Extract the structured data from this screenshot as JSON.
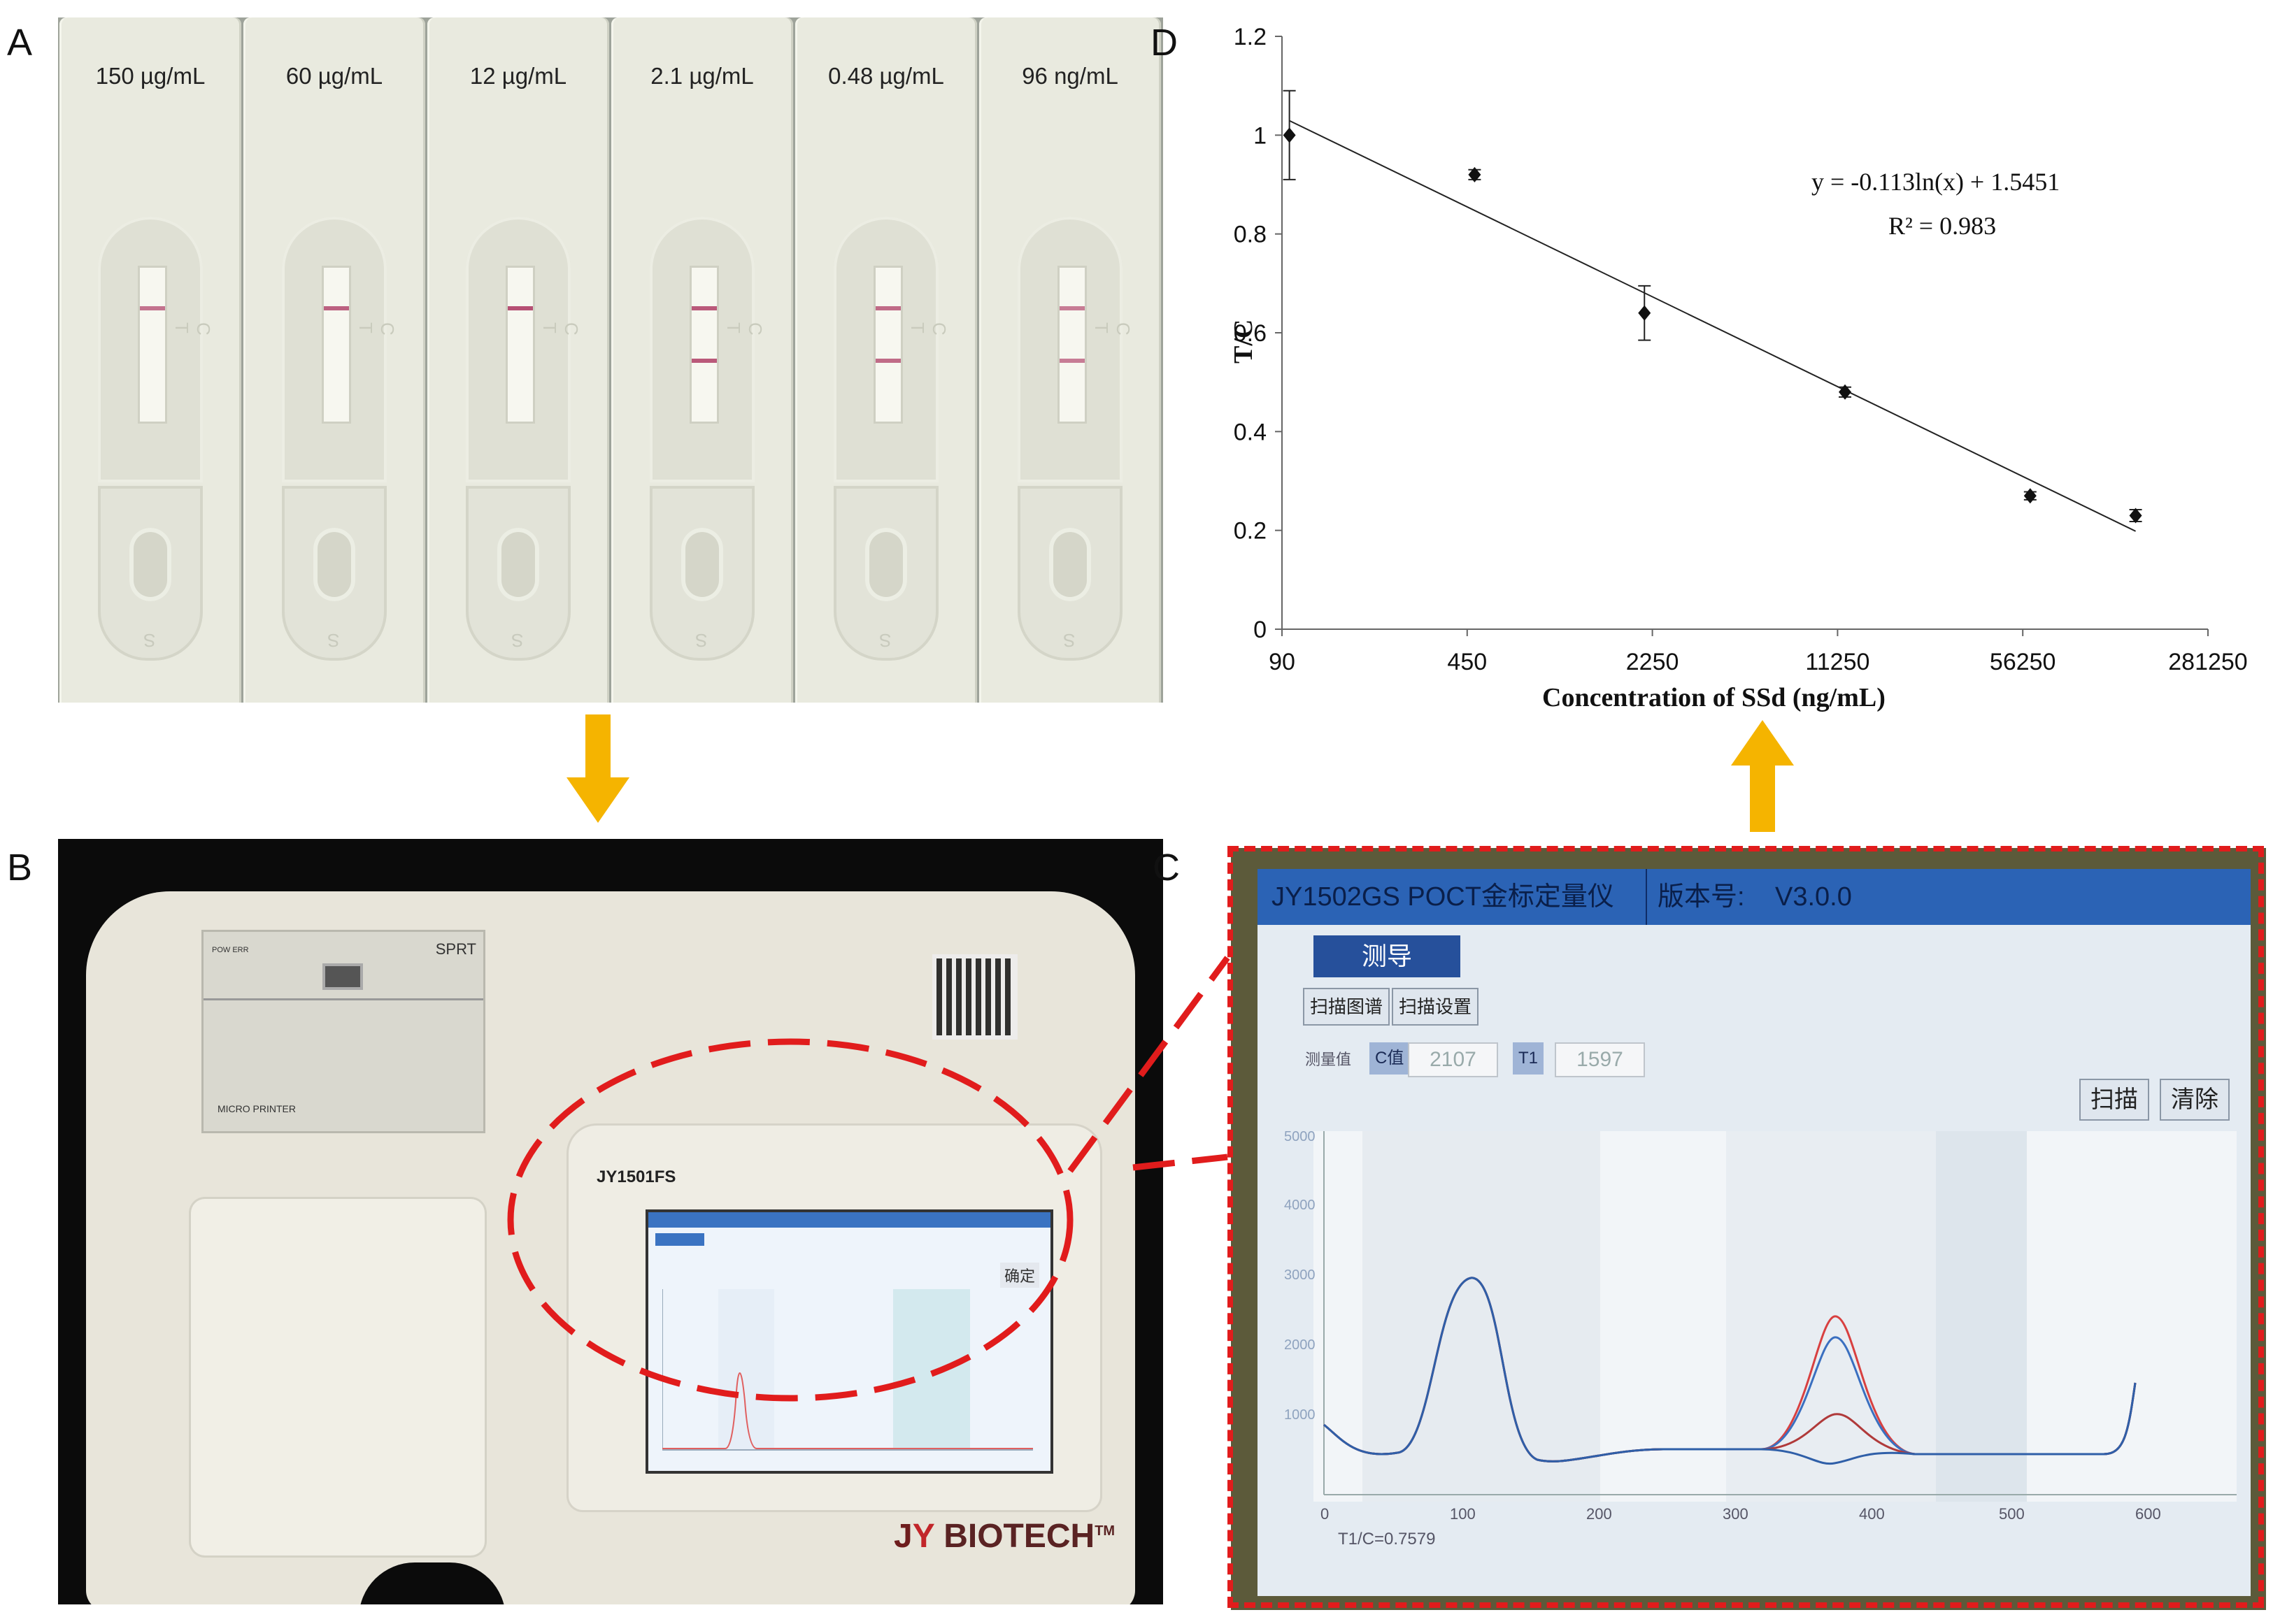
{
  "panels": {
    "a": {
      "letter": "A"
    },
    "b": {
      "letter": "B"
    },
    "c": {
      "letter": "C"
    },
    "d": {
      "letter": "D"
    }
  },
  "test_strips": [
    {
      "concentration": "150 µg/mL",
      "t_intensity": 0.75,
      "c_intensity": 0
    },
    {
      "concentration": "60 µg/mL",
      "t_intensity": 0.85,
      "c_intensity": 0
    },
    {
      "concentration": "12 µg/mL",
      "t_intensity": 0.95,
      "c_intensity": 0
    },
    {
      "concentration": "2.1 µg/mL",
      "t_intensity": 0.9,
      "c_intensity": 0.9
    },
    {
      "concentration": "0.48 µg/mL",
      "t_intensity": 0.8,
      "c_intensity": 0.8
    },
    {
      "concentration": "96 ng/mL",
      "t_intensity": 0.7,
      "c_intensity": 0.7
    }
  ],
  "device": {
    "model": "JY1501FS",
    "brand": "BIOTECH",
    "brand_mark": "TM",
    "printer_label": "SPRT",
    "printer_name": "MICRO PRINTER",
    "status_label": "POW  ERR",
    "screen_button": "确定"
  },
  "reader_screen": {
    "app_title": "JY1502GS  POCT金标定量仪",
    "version_label": "版本号:",
    "version": "V3.0.0",
    "measure_button": "测导",
    "tabs": [
      "扫描图谱",
      "扫描设置"
    ],
    "field_label": "测量值",
    "c_label": "C值",
    "c_value": "2107",
    "t_label": "T1",
    "t_value": "1597",
    "scan_button": "扫描",
    "clear_button": "清除",
    "y_ticks": [
      "5000",
      "4000",
      "3000",
      "2000",
      "1000"
    ],
    "x_ticks": [
      "0",
      "100",
      "200",
      "300",
      "400",
      "500",
      "600"
    ],
    "ratio_text": "T1/C=0.7579",
    "trace_colors": [
      "#d84040",
      "#3a6fc0",
      "#b03a3a",
      "#2f5fa8"
    ]
  },
  "chart_data": {
    "type": "scatter",
    "title": "",
    "xlabel": "Concentration of SSd (ng/mL)",
    "ylabel": "T/C",
    "x_scale": "log",
    "x_ticks": [
      "90",
      "450",
      "2250",
      "11250",
      "56250",
      "281250"
    ],
    "x_tick_values": [
      90,
      450,
      2250,
      11250,
      56250,
      281250
    ],
    "ylim": [
      0,
      1.2
    ],
    "y_ticks": [
      "0",
      "0.2",
      "0.4",
      "0.6",
      "0.8",
      "1",
      "1.2"
    ],
    "y_tick_values": [
      0,
      0.2,
      0.4,
      0.6,
      0.8,
      1.0,
      1.2
    ],
    "points": [
      {
        "x": 96,
        "y": 1.0,
        "err": 0.09
      },
      {
        "x": 480,
        "y": 0.92,
        "err": 0.01
      },
      {
        "x": 2100,
        "y": 0.64,
        "err": 0.055
      },
      {
        "x": 12000,
        "y": 0.48,
        "err": 0.01
      },
      {
        "x": 60000,
        "y": 0.27,
        "err": 0.008
      },
      {
        "x": 150000,
        "y": 0.23,
        "err": 0.012
      }
    ],
    "fit": {
      "a": -0.113,
      "b": 1.5451,
      "x_range": [
        96,
        150000
      ]
    },
    "equation": "y = -0.113ln(x) + 1.5451",
    "r_squared": "R² = 0.983",
    "marker_color": "#111111",
    "grid": false
  },
  "colors": {
    "dashed_frame": "#e11c1c",
    "arrow": "#f5b400",
    "line_red": "#b2476d"
  }
}
